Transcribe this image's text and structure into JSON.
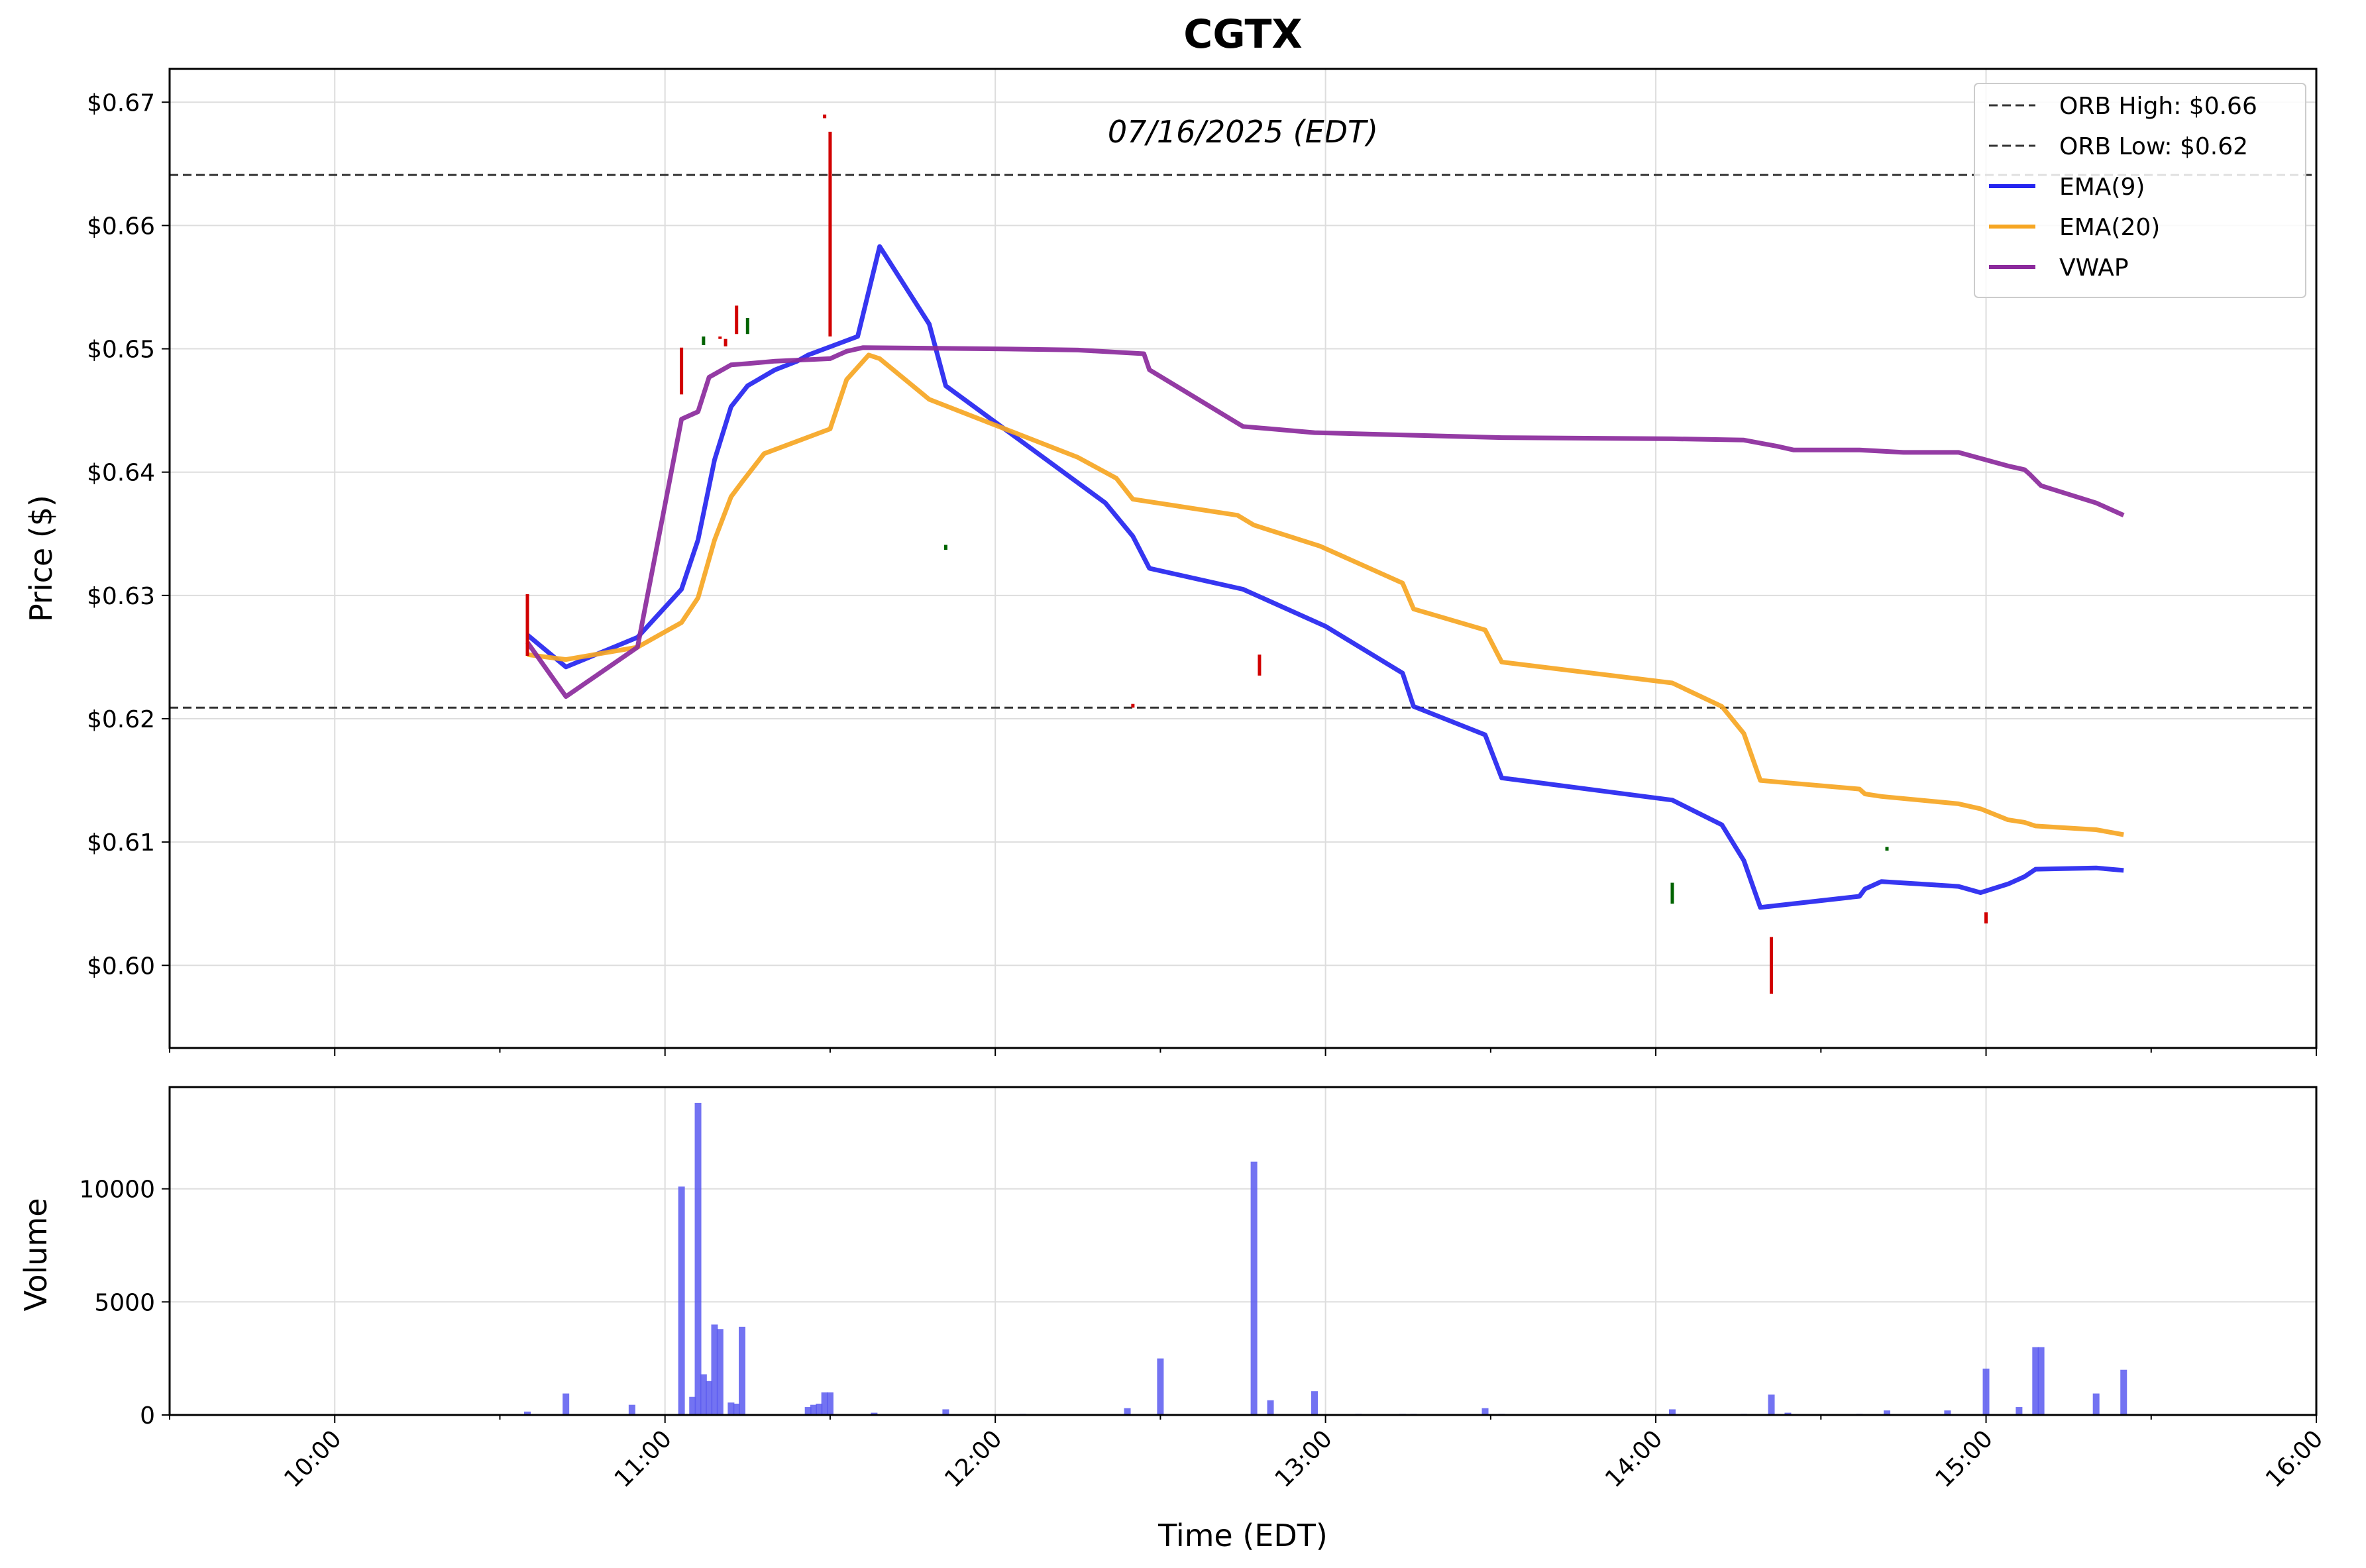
{
  "chart_data": {
    "type": "line",
    "title": "CGTX",
    "subtitle": "07/16/2025 (EDT)",
    "xlabel": "Time (EDT)",
    "price_panel": {
      "ylabel": "Price ($)",
      "ylim": [
        0.5933,
        0.6727
      ],
      "y_ticks": [
        0.6,
        0.61,
        0.62,
        0.63,
        0.64,
        0.65,
        0.66,
        0.67
      ],
      "y_tick_labels": [
        "$0.60",
        "$0.61",
        "$0.62",
        "$0.63",
        "$0.64",
        "$0.65",
        "$0.66",
        "$0.67"
      ],
      "grid": true,
      "legend_position": "top-right",
      "reference_lines": [
        {
          "name": "ORB High: $0.66",
          "value": 0.6641,
          "color": "#333333",
          "style": "dashed"
        },
        {
          "name": "ORB Low: $0.62",
          "value": 0.6209,
          "color": "#333333",
          "style": "dashed"
        }
      ],
      "series": [
        {
          "name": "EMA(9)",
          "color": "#2525F0",
          "x": [
            "10:35",
            "10:42",
            "10:55",
            "11:03",
            "11:06",
            "11:09",
            "11:12",
            "11:15",
            "11:20",
            "11:24",
            "11:26",
            "11:35",
            "11:39",
            "11:48",
            "11:51",
            "12:20",
            "12:25",
            "12:28",
            "12:45",
            "13:00",
            "13:14",
            "13:16",
            "13:29",
            "13:32",
            "14:03",
            "14:12",
            "14:16",
            "14:19",
            "14:37",
            "14:38",
            "14:41",
            "14:55",
            "14:59",
            "15:04",
            "15:07",
            "15:09",
            "15:20",
            "15:25"
          ],
          "y": [
            0.6268,
            0.6242,
            0.6266,
            0.6305,
            0.6345,
            0.641,
            0.6453,
            0.647,
            0.6483,
            0.649,
            0.6495,
            0.651,
            0.6583,
            0.652,
            0.647,
            0.6375,
            0.6348,
            0.6322,
            0.6305,
            0.6275,
            0.6237,
            0.621,
            0.6187,
            0.6152,
            0.6134,
            0.6114,
            0.6085,
            0.6047,
            0.6056,
            0.6062,
            0.6068,
            0.6064,
            0.6059,
            0.6066,
            0.6072,
            0.6078,
            0.6079,
            0.6077
          ]
        },
        {
          "name": "EMA(20)",
          "color": "#F6A623",
          "x": [
            "10:35",
            "10:42",
            "10:55",
            "11:03",
            "11:06",
            "11:09",
            "11:12",
            "11:14",
            "11:18",
            "11:30",
            "11:33",
            "11:37",
            "11:39",
            "11:48",
            "12:15",
            "12:22",
            "12:25",
            "12:44",
            "12:47",
            "12:59",
            "13:14",
            "13:16",
            "13:29",
            "13:32",
            "14:03",
            "14:12",
            "14:16",
            "14:19",
            "14:37",
            "14:38",
            "14:41",
            "14:55",
            "14:59",
            "15:04",
            "15:07",
            "15:09",
            "15:20",
            "15:25"
          ],
          "y": [
            0.6252,
            0.6248,
            0.6258,
            0.6278,
            0.6298,
            0.6345,
            0.638,
            0.6392,
            0.6415,
            0.6435,
            0.6475,
            0.6495,
            0.6492,
            0.6459,
            0.6412,
            0.6395,
            0.6378,
            0.6365,
            0.6357,
            0.634,
            0.631,
            0.6289,
            0.6272,
            0.6246,
            0.6229,
            0.621,
            0.6188,
            0.615,
            0.6143,
            0.6139,
            0.6137,
            0.6131,
            0.6127,
            0.6118,
            0.6116,
            0.6113,
            0.611,
            0.6106
          ]
        },
        {
          "name": "VWAP",
          "color": "#8B2A9C",
          "x": [
            "10:35",
            "10:42",
            "10:55",
            "11:03",
            "11:06",
            "11:08",
            "11:12",
            "11:15",
            "11:20",
            "11:30",
            "11:33",
            "11:36",
            "12:00",
            "12:15",
            "12:27",
            "12:28",
            "12:45",
            "12:58",
            "13:15",
            "13:32",
            "14:03",
            "14:16",
            "14:22",
            "14:25",
            "14:37",
            "14:45",
            "14:55",
            "15:04",
            "15:07",
            "15:08",
            "15:10",
            "15:20",
            "15:25"
          ],
          "y": [
            0.6262,
            0.6218,
            0.6258,
            0.6443,
            0.6449,
            0.6477,
            0.6487,
            0.6488,
            0.649,
            0.6492,
            0.6498,
            0.6501,
            0.65,
            0.6499,
            0.6496,
            0.6483,
            0.6437,
            0.6432,
            0.643,
            0.6428,
            0.6427,
            0.6426,
            0.6421,
            0.6418,
            0.6418,
            0.6416,
            0.6416,
            0.6405,
            0.6402,
            0.6398,
            0.6389,
            0.6375,
            0.6365
          ]
        }
      ],
      "candles": [
        {
          "t": "10:35",
          "low": 0.6251,
          "high": 0.6301,
          "color": "#D10000"
        },
        {
          "t": "11:03",
          "low": 0.6463,
          "high": 0.6501,
          "color": "#D10000"
        },
        {
          "t": "11:07",
          "low": 0.6503,
          "high": 0.651,
          "color": "#006400"
        },
        {
          "t": "11:10",
          "low": 0.6508,
          "high": 0.651,
          "color": "#D10000"
        },
        {
          "t": "11:11",
          "low": 0.6502,
          "high": 0.6508,
          "color": "#D10000"
        },
        {
          "t": "11:13",
          "low": 0.6512,
          "high": 0.6535,
          "color": "#D10000"
        },
        {
          "t": "11:15",
          "low": 0.6512,
          "high": 0.6525,
          "color": "#006400"
        },
        {
          "t": "11:29",
          "low": 0.6687,
          "high": 0.669,
          "color": "#D10000"
        },
        {
          "t": "11:30",
          "low": 0.651,
          "high": 0.6676,
          "color": "#D10000"
        },
        {
          "t": "11:51",
          "low": 0.6337,
          "high": 0.6341,
          "color": "#006400"
        },
        {
          "t": "12:25",
          "low": 0.6209,
          "high": 0.6212,
          "color": "#D10000"
        },
        {
          "t": "12:48",
          "low": 0.6235,
          "high": 0.6252,
          "color": "#D10000"
        },
        {
          "t": "14:03",
          "low": 0.605,
          "high": 0.6067,
          "color": "#006400"
        },
        {
          "t": "14:21",
          "low": 0.5977,
          "high": 0.6023,
          "color": "#D10000"
        },
        {
          "t": "14:42",
          "low": 0.6093,
          "high": 0.6096,
          "color": "#006400"
        },
        {
          "t": "15:00",
          "low": 0.6034,
          "high": 0.6043,
          "color": "#D10000"
        }
      ]
    },
    "volume_panel": {
      "ylabel": "Volume",
      "ylim": [
        0,
        14500
      ],
      "y_ticks": [
        0,
        5000,
        10000
      ],
      "y_tick_labels": [
        "0",
        "5000",
        "10000"
      ],
      "bar_color": "#5A5AF0",
      "bars": [
        {
          "t": "10:35",
          "v": 150
        },
        {
          "t": "10:42",
          "v": 950
        },
        {
          "t": "10:54",
          "v": 450
        },
        {
          "t": "11:03",
          "v": 10100
        },
        {
          "t": "11:05",
          "v": 800
        },
        {
          "t": "11:06",
          "v": 13800
        },
        {
          "t": "11:07",
          "v": 1800
        },
        {
          "t": "11:08",
          "v": 1500
        },
        {
          "t": "11:09",
          "v": 4000
        },
        {
          "t": "11:10",
          "v": 3800
        },
        {
          "t": "11:12",
          "v": 550
        },
        {
          "t": "11:13",
          "v": 500
        },
        {
          "t": "11:14",
          "v": 3900
        },
        {
          "t": "11:26",
          "v": 350
        },
        {
          "t": "11:27",
          "v": 450
        },
        {
          "t": "11:28",
          "v": 500
        },
        {
          "t": "11:29",
          "v": 1000
        },
        {
          "t": "11:30",
          "v": 1000
        },
        {
          "t": "11:38",
          "v": 100
        },
        {
          "t": "11:51",
          "v": 250
        },
        {
          "t": "12:05",
          "v": 50
        },
        {
          "t": "12:24",
          "v": 300
        },
        {
          "t": "12:30",
          "v": 2500
        },
        {
          "t": "12:47",
          "v": 11200
        },
        {
          "t": "12:50",
          "v": 650
        },
        {
          "t": "12:58",
          "v": 1050
        },
        {
          "t": "13:06",
          "v": 50
        },
        {
          "t": "13:14",
          "v": 50
        },
        {
          "t": "13:16",
          "v": 50
        },
        {
          "t": "13:29",
          "v": 300
        },
        {
          "t": "13:32",
          "v": 50
        },
        {
          "t": "14:03",
          "v": 250
        },
        {
          "t": "14:16",
          "v": 50
        },
        {
          "t": "14:21",
          "v": 900
        },
        {
          "t": "14:24",
          "v": 100
        },
        {
          "t": "14:37",
          "v": 50
        },
        {
          "t": "14:42",
          "v": 200
        },
        {
          "t": "14:53",
          "v": 200
        },
        {
          "t": "15:00",
          "v": 2050
        },
        {
          "t": "15:06",
          "v": 350
        },
        {
          "t": "15:09",
          "v": 3000
        },
        {
          "t": "15:10",
          "v": 3000
        },
        {
          "t": "15:20",
          "v": 950
        },
        {
          "t": "15:25",
          "v": 2000
        }
      ]
    },
    "x_axis": {
      "xlim": [
        "09:30",
        "16:00"
      ],
      "ticks": [
        "10:00",
        "11:00",
        "12:00",
        "13:00",
        "14:00",
        "15:00",
        "16:00"
      ]
    },
    "legend": [
      {
        "label": "ORB High: $0.66",
        "style": "dashed",
        "color": "#333333"
      },
      {
        "label": "ORB Low: $0.62",
        "style": "dashed",
        "color": "#333333"
      },
      {
        "label": "EMA(9)",
        "style": "solid",
        "color": "#2525F0"
      },
      {
        "label": "EMA(20)",
        "style": "solid",
        "color": "#F6A623"
      },
      {
        "label": "VWAP",
        "style": "solid",
        "color": "#8B2A9C"
      }
    ]
  }
}
